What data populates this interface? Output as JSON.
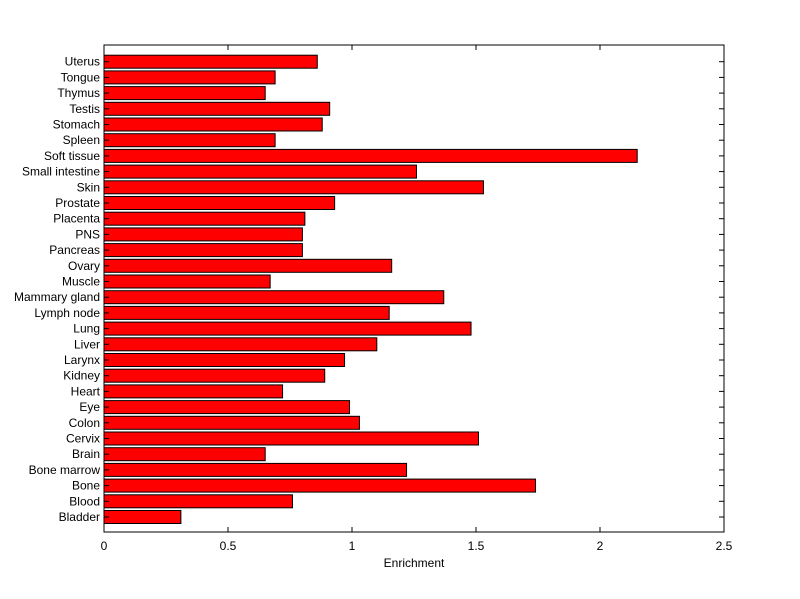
{
  "chart_data": {
    "type": "bar",
    "orientation": "horizontal",
    "title": "",
    "xlabel": "Enrichment",
    "ylabel": "",
    "xlim": [
      0,
      2.5
    ],
    "xticks": [
      "0",
      "0.5",
      "1",
      "1.5",
      "2",
      "2.5"
    ],
    "grid": false,
    "legend": "none",
    "bar_color": "#ff0000",
    "categories": [
      "Bladder",
      "Blood",
      "Bone",
      "Bone marrow",
      "Brain",
      "Cervix",
      "Colon",
      "Eye",
      "Heart",
      "Kidney",
      "Larynx",
      "Liver",
      "Lung",
      "Lymph node",
      "Mammary gland",
      "Muscle",
      "Ovary",
      "Pancreas",
      "PNS",
      "Placenta",
      "Prostate",
      "Skin",
      "Small intestine",
      "Soft tissue",
      "Spleen",
      "Stomach",
      "Testis",
      "Thymus",
      "Tongue",
      "Uterus"
    ],
    "values": [
      0.31,
      0.76,
      1.74,
      1.22,
      0.65,
      1.51,
      1.03,
      0.99,
      0.72,
      0.89,
      0.97,
      1.1,
      1.48,
      1.15,
      1.37,
      0.67,
      1.16,
      0.8,
      0.8,
      0.81,
      0.93,
      1.53,
      1.26,
      2.15,
      0.69,
      0.88,
      0.91,
      0.65,
      0.69,
      0.86
    ]
  }
}
